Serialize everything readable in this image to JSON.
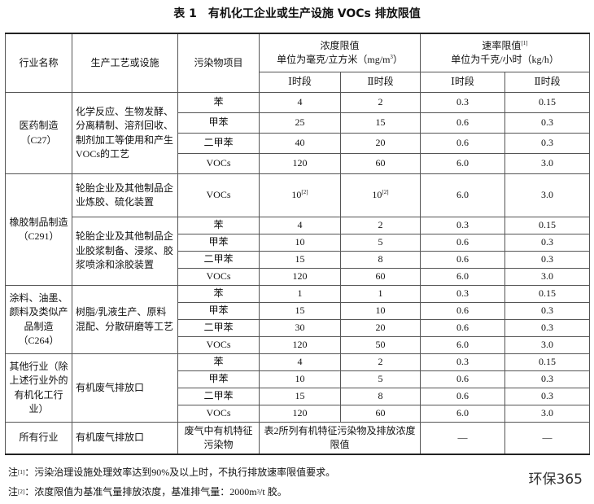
{
  "title": "表 1　有机化工企业或生产设施 VOCs 排放限值",
  "header": {
    "industry": "行业名称",
    "process": "生产工艺或设施",
    "pollutant": "污染物项目",
    "conc_title": "浓度限值",
    "conc_unit": "单位为毫克/立方米（mg/m",
    "conc_unit_sup": "3",
    "conc_unit_end": "）",
    "rate_title": "速率限值",
    "rate_title_sup": "[1]",
    "rate_unit": "单位为千克/小时（kg/h）",
    "periods": [
      "Ⅰ时段",
      "Ⅱ时段",
      "Ⅰ时段",
      "Ⅱ时段"
    ]
  },
  "groups": [
    {
      "industry": "医药制造（C27）",
      "subgroups": [
        {
          "process": "化学反应、生物发酵、分离精制、溶剂回收、制剂加工等使用和产生VOCs的工艺",
          "rows": [
            {
              "pollutant": "苯",
              "values": [
                "4",
                "2",
                "0.3",
                "0.15"
              ]
            },
            {
              "pollutant": "甲苯",
              "values": [
                "25",
                "15",
                "0.6",
                "0.3"
              ]
            },
            {
              "pollutant": "二甲苯",
              "values": [
                "40",
                "20",
                "0.6",
                "0.3"
              ]
            },
            {
              "pollutant": "VOCs",
              "values": [
                "120",
                "60",
                "6.0",
                "3.0"
              ]
            }
          ]
        }
      ]
    },
    {
      "industry": "橡胶制品制造（C291）",
      "subgroups": [
        {
          "process": "轮胎企业及其他制品企业炼胶、硫化装置",
          "rows": [
            {
              "pollutant": "VOCs",
              "values": [
                {
                  "text": "10",
                  "sup": "[2]"
                },
                {
                  "text": "10",
                  "sup": "[2]"
                },
                "6.0",
                "3.0"
              ]
            }
          ]
        },
        {
          "process": "轮胎企业及其他制品企业胶浆制备、浸浆、胶浆喷涂和涂胶装置",
          "rows": [
            {
              "pollutant": "苯",
              "values": [
                "4",
                "2",
                "0.3",
                "0.15"
              ]
            },
            {
              "pollutant": "甲苯",
              "values": [
                "10",
                "5",
                "0.6",
                "0.3"
              ]
            },
            {
              "pollutant": "二甲苯",
              "values": [
                "15",
                "8",
                "0.6",
                "0.3"
              ]
            },
            {
              "pollutant": "VOCs",
              "values": [
                "120",
                "60",
                "6.0",
                "3.0"
              ]
            }
          ]
        }
      ]
    },
    {
      "industry": "涂料、油墨、颜料及类似产品制造（C264）",
      "subgroups": [
        {
          "process": "树脂/乳液生产、原料混配、分散研磨等工艺",
          "rows": [
            {
              "pollutant": "苯",
              "values": [
                "1",
                "1",
                "0.3",
                "0.15"
              ]
            },
            {
              "pollutant": "甲苯",
              "values": [
                "15",
                "10",
                "0.6",
                "0.3"
              ]
            },
            {
              "pollutant": "二甲苯",
              "values": [
                "30",
                "20",
                "0.6",
                "0.3"
              ]
            },
            {
              "pollutant": "VOCs",
              "values": [
                "120",
                "50",
                "6.0",
                "3.0"
              ]
            }
          ]
        }
      ]
    },
    {
      "industry": "其他行业（除上述行业外的有机化工行业）",
      "subgroups": [
        {
          "process": "有机废气排放口",
          "rows": [
            {
              "pollutant": "苯",
              "values": [
                "4",
                "2",
                "0.3",
                "0.15"
              ]
            },
            {
              "pollutant": "甲苯",
              "values": [
                "10",
                "5",
                "0.6",
                "0.3"
              ]
            },
            {
              "pollutant": "二甲苯",
              "values": [
                "15",
                "8",
                "0.6",
                "0.3"
              ]
            },
            {
              "pollutant": "VOCs",
              "values": [
                "120",
                "60",
                "6.0",
                "3.0"
              ]
            }
          ]
        }
      ]
    },
    {
      "industry": "所有行业",
      "subgroups": [
        {
          "process": "有机废气排放口",
          "rows": [
            {
              "pollutant": "废气中有机特征污染物",
              "merged": "表2所列有机特征污染物及排放浓度限值",
              "rate": [
                "—",
                "—"
              ]
            }
          ]
        }
      ]
    }
  ],
  "notes": [
    {
      "label": "注",
      "sup": "[1]",
      "text": "：污染治理设施处理效率达到90%及以上时，不执行排放速率限值要求。"
    },
    {
      "label": "注",
      "sup": "[2]",
      "text": "：浓度限值为基准气量排放浓度，基准排气量：2000m",
      "sup2": "3",
      "text2": "/t 胶。"
    }
  ],
  "watermark": "环保365"
}
